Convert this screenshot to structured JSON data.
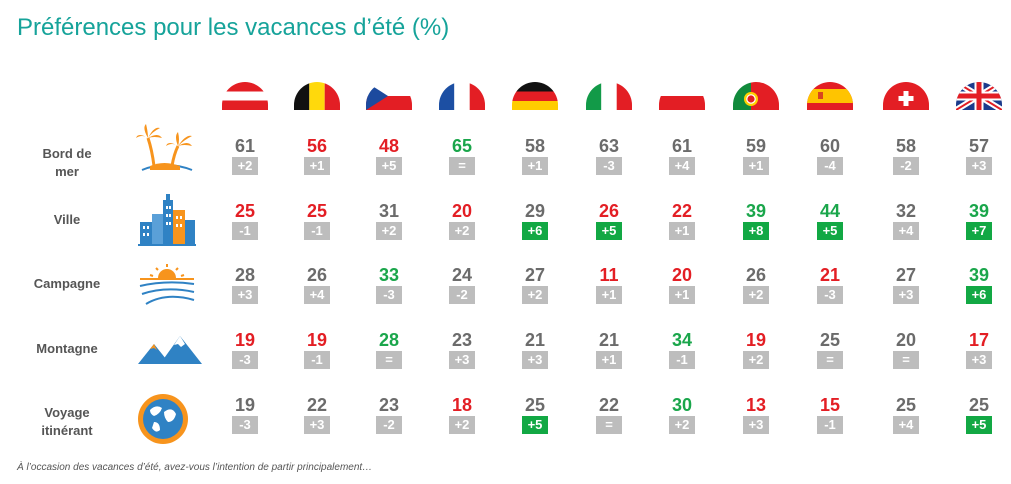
{
  "title": "Préférences pour les vacances d’été (%)",
  "footnote": "À l’occasion des vacances d’été, avez-vous l’intention de partir principalement…",
  "colors": {
    "title": "#16A39A",
    "neutral": "#6B6B6B",
    "low": "#E31E24",
    "high": "#1AA64B",
    "badge_neutral": "#BDBDBD",
    "badge_up": "#12A844",
    "label": "#555555",
    "icon": "#F7941D"
  },
  "countries": [
    {
      "flag": "austria-flag-icon"
    },
    {
      "flag": "belgium-flag-icon"
    },
    {
      "flag": "czech-flag-icon"
    },
    {
      "flag": "france-flag-icon"
    },
    {
      "flag": "germany-flag-icon"
    },
    {
      "flag": "italy-flag-icon"
    },
    {
      "flag": "poland-flag-icon"
    },
    {
      "flag": "portugal-flag-icon"
    },
    {
      "flag": "spain-flag-icon"
    },
    {
      "flag": "switzerland-flag-icon"
    },
    {
      "flag": "uk-flag-icon"
    }
  ],
  "chart_data": {
    "type": "table",
    "rows": [
      {
        "label": "Bord de\nmer",
        "icon": "beach-palm-icon",
        "values": [
          61,
          56,
          48,
          65,
          58,
          63,
          61,
          59,
          60,
          58,
          57
        ],
        "changes": [
          "+2",
          "+1",
          "+5",
          "=",
          "+1",
          "-3",
          "+4",
          "+1",
          "-4",
          "-2",
          "+3"
        ],
        "value_colors": [
          "neutral",
          "low",
          "low",
          "high",
          "neutral",
          "neutral",
          "neutral",
          "neutral",
          "neutral",
          "neutral",
          "neutral"
        ],
        "change_highlight": [
          false,
          false,
          false,
          false,
          false,
          false,
          false,
          false,
          false,
          false,
          false
        ]
      },
      {
        "label": "Ville",
        "icon": "city-buildings-icon",
        "values": [
          25,
          25,
          31,
          20,
          29,
          26,
          22,
          39,
          44,
          32,
          39
        ],
        "changes": [
          "-1",
          "-1",
          "+2",
          "+2",
          "+6",
          "+5",
          "+1",
          "+8",
          "+5",
          "+4",
          "+7"
        ],
        "value_colors": [
          "low",
          "low",
          "neutral",
          "low",
          "neutral",
          "low",
          "low",
          "high",
          "high",
          "neutral",
          "high"
        ],
        "change_highlight": [
          false,
          false,
          false,
          false,
          true,
          true,
          false,
          true,
          true,
          false,
          true
        ]
      },
      {
        "label": "Campagne",
        "icon": "countryside-sunrise-icon",
        "values": [
          28,
          26,
          33,
          24,
          27,
          11,
          20,
          26,
          21,
          27,
          39
        ],
        "changes": [
          "+3",
          "+4",
          "-3",
          "-2",
          "+2",
          "+1",
          "+1",
          "+2",
          "-3",
          "+3",
          "+6"
        ],
        "value_colors": [
          "neutral",
          "neutral",
          "high",
          "neutral",
          "neutral",
          "low",
          "low",
          "neutral",
          "low",
          "neutral",
          "high"
        ],
        "change_highlight": [
          false,
          false,
          false,
          false,
          false,
          false,
          false,
          false,
          false,
          false,
          true
        ]
      },
      {
        "label": "Montagne",
        "icon": "mountain-icon",
        "values": [
          19,
          19,
          28,
          23,
          21,
          21,
          34,
          19,
          25,
          20,
          17
        ],
        "changes": [
          "-3",
          "-1",
          "=",
          "+3",
          "+3",
          "+1",
          "-1",
          "+2",
          "=",
          "=",
          "+3"
        ],
        "value_colors": [
          "low",
          "low",
          "high",
          "neutral",
          "neutral",
          "neutral",
          "high",
          "low",
          "neutral",
          "neutral",
          "low"
        ],
        "change_highlight": [
          false,
          false,
          false,
          false,
          false,
          false,
          false,
          false,
          false,
          false,
          false
        ]
      },
      {
        "label": "Voyage\nitinérant",
        "icon": "globe-icon",
        "values": [
          19,
          22,
          23,
          18,
          25,
          22,
          30,
          13,
          15,
          25,
          25
        ],
        "changes": [
          "-3",
          "+3",
          "-2",
          "+2",
          "+5",
          "=",
          "+2",
          "+3",
          "-1",
          "+4",
          "+5"
        ],
        "value_colors": [
          "neutral",
          "neutral",
          "neutral",
          "low",
          "neutral",
          "neutral",
          "high",
          "low",
          "low",
          "neutral",
          "neutral"
        ],
        "change_highlight": [
          false,
          false,
          false,
          false,
          true,
          false,
          false,
          false,
          false,
          false,
          true
        ]
      }
    ]
  }
}
